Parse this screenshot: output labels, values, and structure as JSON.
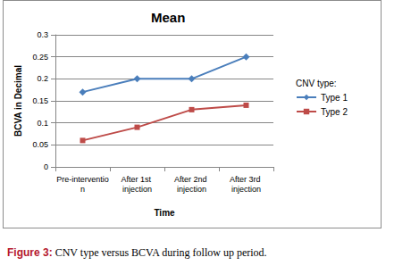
{
  "chart_data": {
    "type": "line",
    "title": "Mean",
    "x_label": "Time",
    "y_label": "BCVA in Decimal",
    "legend_title": "CNV type:",
    "categories": [
      "Pre-intervention",
      "After 1st injection",
      "After 2nd injection",
      "After 3rd injection"
    ],
    "series": [
      {
        "name": "Type 1",
        "color": "#4a7ebb",
        "marker": "diamond",
        "values": [
          0.17,
          0.2,
          0.2,
          0.25
        ]
      },
      {
        "name": "Type 2",
        "color": "#be4b48",
        "marker": "square",
        "values": [
          0.06,
          0.09,
          0.13,
          0.14
        ]
      }
    ],
    "ylim": [
      0,
      0.3
    ],
    "yticks": [
      0,
      0.05,
      0.1,
      0.15,
      0.2,
      0.25,
      0.3
    ],
    "grid": true,
    "legend": "right",
    "caption": {
      "label": "Figure 3:",
      "text": "CNV type versus BCVA during follow up period."
    }
  }
}
